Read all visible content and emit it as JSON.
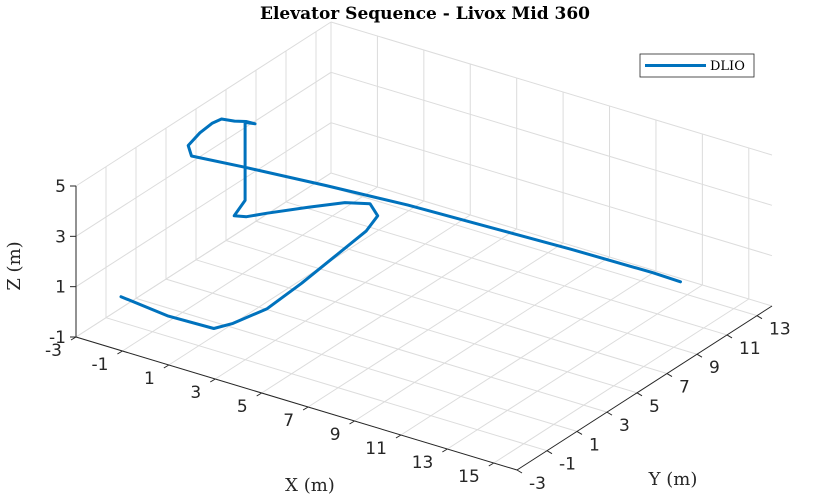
{
  "chart_data": {
    "type": "line",
    "title": "Elevator Sequence - Livox Mid 360",
    "xlabel": "X (m)",
    "ylabel": "Y (m)",
    "zlabel": "Z (m)",
    "xlim": [
      -3,
      16
    ],
    "ylim": [
      -3,
      14
    ],
    "zlim": [
      -1,
      5
    ],
    "xticks": [
      "-3",
      "-1",
      "1",
      "3",
      "5",
      "7",
      "9",
      "11",
      "13",
      "15"
    ],
    "yticks": [
      "-3",
      "-1",
      "1",
      "3",
      "5",
      "7",
      "9",
      "11",
      "13"
    ],
    "zticks": [
      "-1",
      "1",
      "3",
      "5"
    ],
    "grid": true,
    "legend_position": "top-right",
    "series": [
      {
        "name": "DLIO",
        "color": "#0072BD",
        "points": [
          [
            -3,
            0,
            -0.55
          ],
          [
            -1,
            0,
            -0.75
          ],
          [
            1,
            0,
            -0.7
          ],
          [
            1.5,
            0.5,
            -0.55
          ],
          [
            2,
            2,
            -0.4
          ],
          [
            2.2,
            4,
            -0.1
          ],
          [
            2.3,
            6,
            0.2
          ],
          [
            2.4,
            8,
            0.5
          ],
          [
            2.5,
            8.6,
            0.9
          ],
          [
            2.3,
            8.4,
            1.4
          ],
          [
            1.8,
            7.5,
            1.65
          ],
          [
            1,
            6.3,
            1.7
          ],
          [
            0,
            5.1,
            1.65
          ],
          [
            -0.5,
            4.5,
            1.6
          ],
          [
            -0.9,
            4.3,
            1.6
          ],
          [
            -1.4,
            5.8,
            1.5
          ],
          [
            -1.4,
            5.8,
            4.6
          ],
          [
            -1.1,
            6,
            4.55
          ],
          [
            -1.3,
            5.7,
            4.7
          ],
          [
            -1.6,
            5.4,
            4.75
          ],
          [
            -1.9,
            5.0,
            4.9
          ],
          [
            -2.1,
            4.7,
            4.8
          ],
          [
            -2.25,
            4.1,
            4.6
          ],
          [
            -2.3,
            3.4,
            4.35
          ],
          [
            -1.9,
            3.0,
            4.2
          ],
          [
            0,
            3.6,
            4.05
          ],
          [
            3,
            4.4,
            3.85
          ],
          [
            6,
            5.2,
            3.6
          ],
          [
            9,
            6.0,
            3.25
          ],
          [
            12,
            6.8,
            2.9
          ],
          [
            15,
            7.6,
            2.5
          ],
          [
            16,
            7.9,
            2.3
          ]
        ]
      }
    ]
  }
}
